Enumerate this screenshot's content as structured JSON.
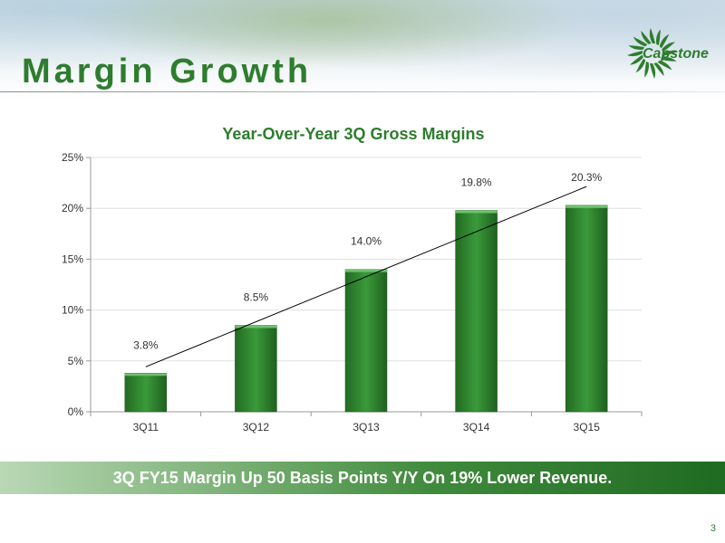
{
  "slide": {
    "title": "Margin Growth",
    "brand": "Capstone",
    "banner": "3Q FY15 Margin Up 50 Basis Points Y/Y On 19% Lower Revenue.",
    "page_number": "3"
  },
  "colors": {
    "accent": "#2e7d2e",
    "bar_fill": "#2f8a2f",
    "trend_line": "#000000"
  },
  "chart_data": {
    "type": "bar",
    "title": "Year-Over-Year 3Q Gross Margins",
    "xlabel": "",
    "ylabel": "",
    "categories": [
      "3Q11",
      "3Q12",
      "3Q13",
      "3Q14",
      "3Q15"
    ],
    "values": [
      3.8,
      8.5,
      14.0,
      19.8,
      20.3
    ],
    "data_labels": [
      "3.8%",
      "8.5%",
      "14.0%",
      "19.8%",
      "20.3%"
    ],
    "ylim": [
      0,
      25
    ],
    "yticks": [
      0,
      5,
      10,
      15,
      20,
      25
    ],
    "ytick_labels": [
      "0%",
      "5%",
      "10%",
      "15%",
      "20%",
      "25%"
    ],
    "grid": true,
    "legend": "none",
    "trendline": "linear"
  }
}
